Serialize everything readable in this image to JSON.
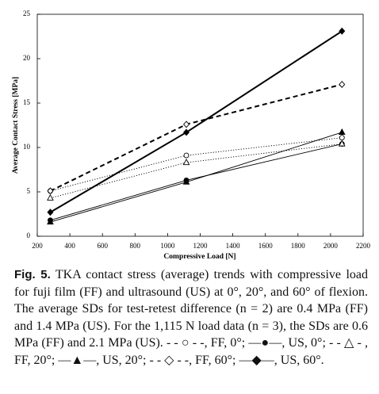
{
  "chart_data": {
    "type": "line",
    "x_label": "Compressive Load [N]",
    "y_label": "Average Contact Stress [MPa]",
    "x": [
      280,
      1115,
      2070
    ],
    "xlim": [
      200,
      2200
    ],
    "xticks": [
      200,
      400,
      600,
      800,
      1000,
      1200,
      1400,
      1600,
      1800,
      2000,
      2200
    ],
    "ylim": [
      0,
      25
    ],
    "yticks": [
      0,
      5,
      10,
      15,
      20,
      25
    ],
    "series": [
      {
        "color": "#000",
        "marker": "circle",
        "filled": false,
        "line_style": "dotted",
        "values": [
          5.1,
          9.1,
          11.1
        ]
      },
      {
        "color": "#000",
        "marker": "circle",
        "filled": true,
        "line_style": "solid",
        "values": [
          1.8,
          6.3,
          10.4
        ]
      },
      {
        "color": "#000",
        "marker": "triangle",
        "filled": false,
        "line_style": "dotted",
        "values": [
          4.3,
          8.3,
          10.4
        ]
      },
      {
        "color": "#000",
        "marker": "triangle",
        "filled": true,
        "line_style": "solid",
        "values": [
          1.6,
          6.1,
          11.7
        ]
      },
      {
        "color": "#000",
        "marker": "diamond",
        "filled": false,
        "line_style": "dashed",
        "values": [
          5.1,
          12.6,
          17.1
        ]
      },
      {
        "color": "#000",
        "marker": "diamond",
        "filled": true,
        "line_style": "bold",
        "values": [
          2.7,
          11.7,
          23.1
        ]
      }
    ],
    "caption_label": "Fig. 5.",
    "caption": "TKA contact stress (average) trends with compressive load for fuji film (FF) and ultrasound (US) at 0°, 20°, and 60° of flexion. The average SDs for test-retest difference (n = 2) are 0.4 MPa (FF) and 1.4 MPa (US). For the 1,115 N load data (n = 3), the SDs are 0.6 MPa (FF) and 2.1 MPa (US). - - ○ - -, FF, 0°; —●—, US, 0°; - - △ - , FF, 20°; —▲—, US, 20°; - - ◇ - -, FF, 60°; —◆—, US, 60°."
  }
}
